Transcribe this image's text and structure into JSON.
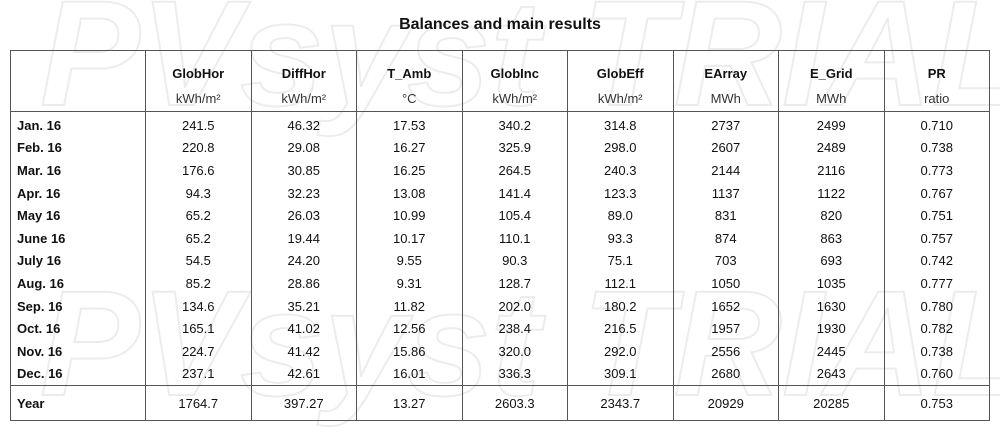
{
  "watermark": "PVsyst TRIAL",
  "title": "Balances and main results",
  "table": {
    "columns": [
      {
        "name": "GlobHor",
        "unit": "kWh/m²"
      },
      {
        "name": "DiffHor",
        "unit": "kWh/m²"
      },
      {
        "name": "T_Amb",
        "unit": "°C"
      },
      {
        "name": "GlobInc",
        "unit": "kWh/m²"
      },
      {
        "name": "GlobEff",
        "unit": "kWh/m²"
      },
      {
        "name": "EArray",
        "unit": "MWh"
      },
      {
        "name": "E_Grid",
        "unit": "MWh"
      },
      {
        "name": "PR",
        "unit": "ratio"
      }
    ],
    "rows": [
      [
        "Jan. 16",
        "241.5",
        "46.32",
        "17.53",
        "340.2",
        "314.8",
        "2737",
        "2499",
        "0.710"
      ],
      [
        "Feb. 16",
        "220.8",
        "29.08",
        "16.27",
        "325.9",
        "298.0",
        "2607",
        "2489",
        "0.738"
      ],
      [
        "Mar. 16",
        "176.6",
        "30.85",
        "16.25",
        "264.5",
        "240.3",
        "2144",
        "2116",
        "0.773"
      ],
      [
        "Apr. 16",
        "94.3",
        "32.23",
        "13.08",
        "141.4",
        "123.3",
        "1137",
        "1122",
        "0.767"
      ],
      [
        "May 16",
        "65.2",
        "26.03",
        "10.99",
        "105.4",
        "89.0",
        "831",
        "820",
        "0.751"
      ],
      [
        "June 16",
        "65.2",
        "19.44",
        "10.17",
        "110.1",
        "93.3",
        "874",
        "863",
        "0.757"
      ],
      [
        "July 16",
        "54.5",
        "24.20",
        "9.55",
        "90.3",
        "75.1",
        "703",
        "693",
        "0.742"
      ],
      [
        "Aug. 16",
        "85.2",
        "28.86",
        "9.31",
        "128.7",
        "112.1",
        "1050",
        "1035",
        "0.777"
      ],
      [
        "Sep. 16",
        "134.6",
        "35.21",
        "11.82",
        "202.0",
        "180.2",
        "1652",
        "1630",
        "0.780"
      ],
      [
        "Oct. 16",
        "165.1",
        "41.02",
        "12.56",
        "238.4",
        "216.5",
        "1957",
        "1930",
        "0.782"
      ],
      [
        "Nov. 16",
        "224.7",
        "41.42",
        "15.86",
        "320.0",
        "292.0",
        "2556",
        "2445",
        "0.738"
      ],
      [
        "Dec. 16",
        "237.1",
        "42.61",
        "16.01",
        "336.3",
        "309.1",
        "2680",
        "2643",
        "0.760"
      ]
    ],
    "total": [
      "Year",
      "1764.7",
      "397.27",
      "13.27",
      "2603.3",
      "2343.7",
      "20929",
      "20285",
      "0.753"
    ]
  }
}
